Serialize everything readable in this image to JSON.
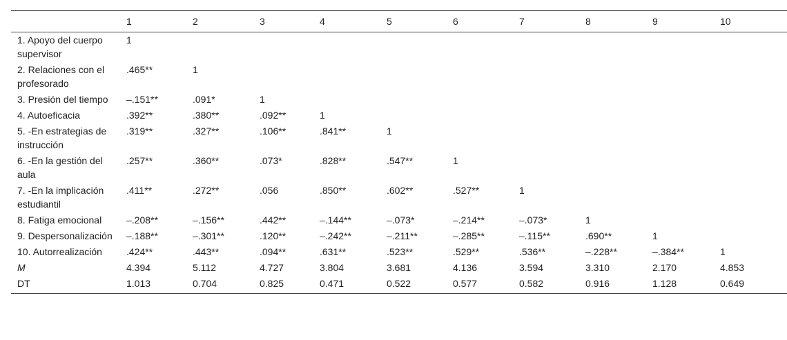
{
  "table": {
    "headers": [
      "",
      "1",
      "2",
      "3",
      "4",
      "5",
      "6",
      "7",
      "8",
      "9",
      "10"
    ],
    "rows": [
      {
        "label": "1. Apoyo del cuerpo supervisor",
        "cells": [
          "1",
          "",
          "",
          "",
          "",
          "",
          "",
          "",
          "",
          ""
        ]
      },
      {
        "label": "2. Relaciones con el profesorado",
        "cells": [
          ".465**",
          "1",
          "",
          "",
          "",
          "",
          "",
          "",
          "",
          ""
        ]
      },
      {
        "label": "3. Presión del tiempo",
        "cells": [
          "–.151**",
          ".091*",
          "1",
          "",
          "",
          "",
          "",
          "",
          "",
          ""
        ]
      },
      {
        "label": "4. Autoeficacia",
        "cells": [
          ".392**",
          ".380**",
          ".092**",
          "1",
          "",
          "",
          "",
          "",
          "",
          ""
        ]
      },
      {
        "label": "5. -En estrategias de instrucción",
        "cells": [
          ".319**",
          ".327**",
          ".106**",
          ".841**",
          "1",
          "",
          "",
          "",
          "",
          ""
        ]
      },
      {
        "label": "6. -En la gestión del aula",
        "cells": [
          ".257**",
          ".360**",
          ".073*",
          ".828**",
          ".547**",
          "1",
          "",
          "",
          "",
          ""
        ]
      },
      {
        "label": "7. -En la implicación estudiantil",
        "cells": [
          ".411**",
          ".272**",
          ".056",
          ".850**",
          ".602**",
          ".527**",
          "1",
          "",
          "",
          ""
        ]
      },
      {
        "label": "8. Fatiga emocional",
        "cells": [
          "–.208**",
          "–.156**",
          ".442**",
          "–.144**",
          "–.073*",
          "–.214**",
          "–.073*",
          "1",
          "",
          ""
        ]
      },
      {
        "label": "9. Despersonalización",
        "cells": [
          "–.188**",
          "–.301**",
          ".120**",
          "–.242**",
          "–.211**",
          "–.285**",
          "–.115**",
          ".690**",
          "1",
          ""
        ]
      },
      {
        "label": "10. Autorrealización",
        "cells": [
          ".424**",
          ".443**",
          ".094**",
          ".631**",
          ".523**",
          ".529**",
          ".536**",
          "–.228**",
          "–.384**",
          "1"
        ]
      },
      {
        "label": "M",
        "italic": true,
        "cells": [
          "4.394",
          "5.112",
          "4.727",
          "3.804",
          "3.681",
          "4.136",
          "3.594",
          "3.310",
          "2.170",
          "4.853"
        ]
      },
      {
        "label": "DT",
        "cells": [
          "1.013",
          "0.704",
          "0.825",
          "0.471",
          "0.522",
          "0.577",
          "0.582",
          "0.916",
          "1.128",
          "0.649"
        ]
      }
    ]
  }
}
